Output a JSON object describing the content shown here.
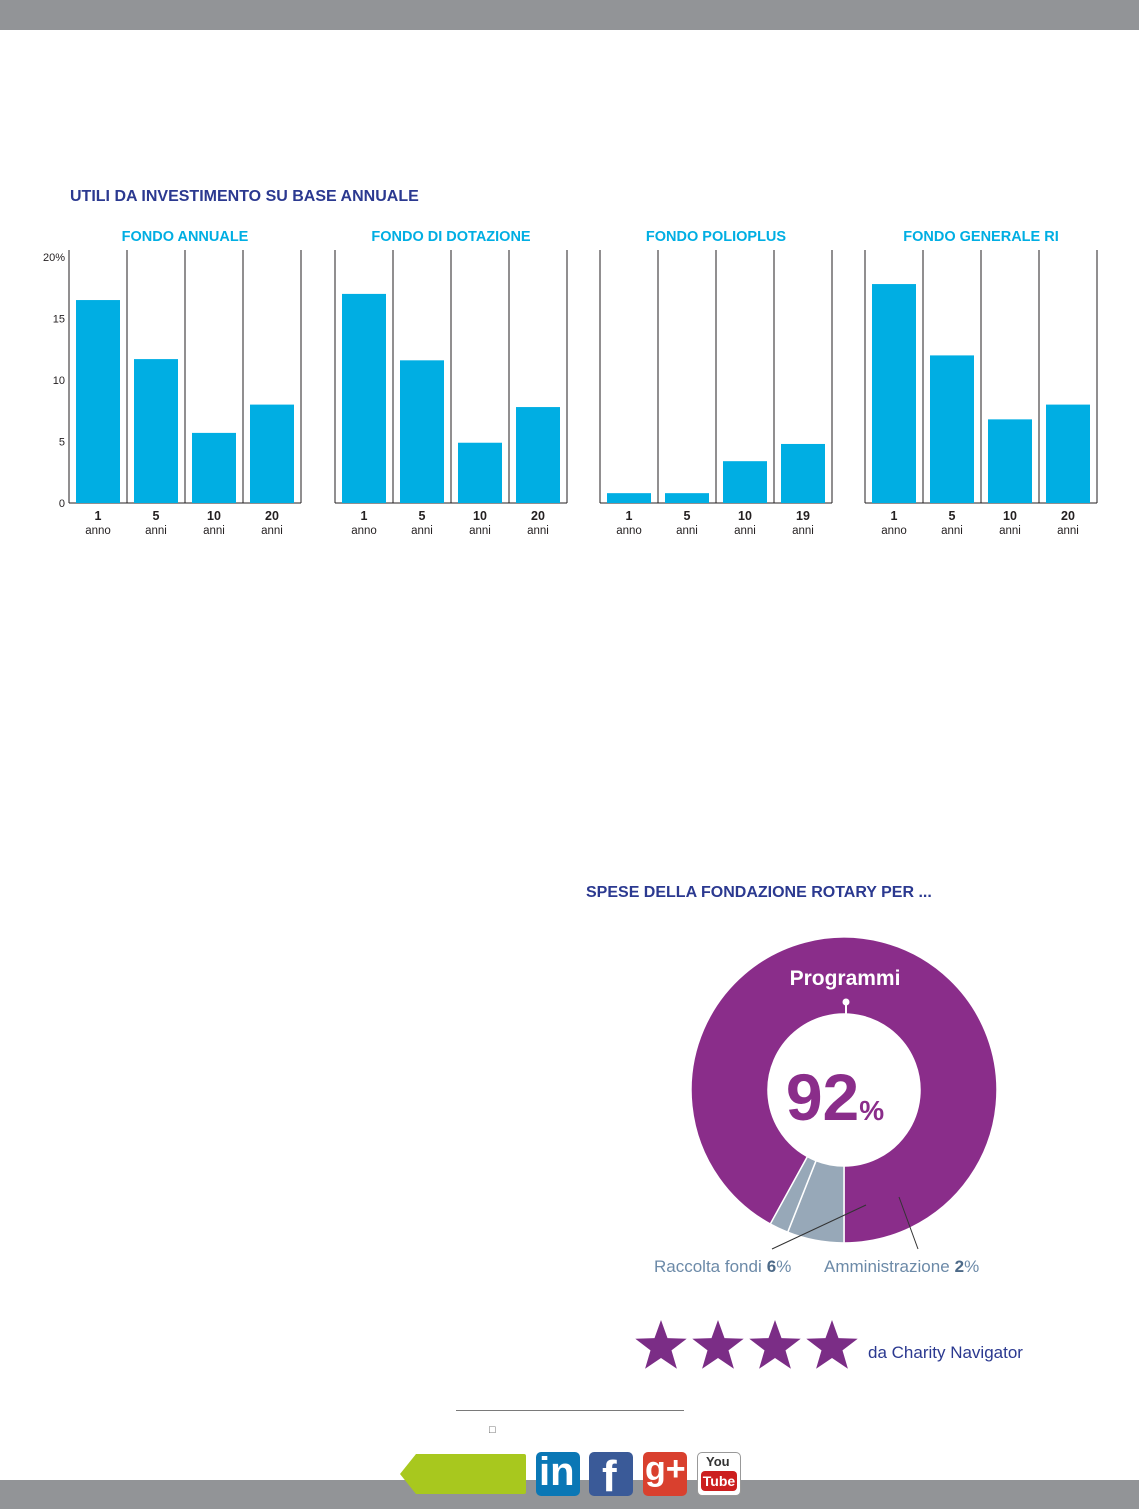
{
  "bar_chart_title": "UTILI DA INVESTIMENTO SU BASE ANNUALE",
  "donut_title": "SPESE DELLA FONDAZIONE ROTARY PER ...",
  "colors": {
    "bar": "#00aee3",
    "group_title": "#00aee3",
    "title": "#2b3990",
    "programmi": "#8a2d8a",
    "slice_gray": "#97a8b8",
    "bars_gray_top": "#929497",
    "stars": "#7b2d86",
    "label_gray": "#6c8aa8"
  },
  "chart_data": [
    {
      "type": "bar",
      "title": "UTILI DA INVESTIMENTO SU BASE ANNUALE",
      "ylim": [
        0,
        20
      ],
      "yticks": [
        "0",
        "5",
        "10",
        "15",
        "20%"
      ],
      "grid": false,
      "groups": [
        {
          "name": "FONDO ANNUALE",
          "categories": [
            "1",
            "5",
            "10",
            "20"
          ],
          "units": [
            "anno",
            "anni",
            "anni",
            "anni"
          ],
          "values": [
            16.5,
            11.7,
            5.7,
            8.0
          ]
        },
        {
          "name": "FONDO DI DOTAZIONE",
          "categories": [
            "1",
            "5",
            "10",
            "20"
          ],
          "units": [
            "anno",
            "anni",
            "anni",
            "anni"
          ],
          "values": [
            17.0,
            11.6,
            4.9,
            7.8
          ]
        },
        {
          "name": "FONDO POLIOPLUS",
          "categories": [
            "1",
            "5",
            "10",
            "19"
          ],
          "units": [
            "anno",
            "anni",
            "anni",
            "anni"
          ],
          "values": [
            0.8,
            0.8,
            3.4,
            4.8
          ]
        },
        {
          "name": "FONDO GENERALE RI",
          "categories": [
            "1",
            "5",
            "10",
            "20"
          ],
          "units": [
            "anno",
            "anni",
            "anni",
            "anni"
          ],
          "values": [
            17.8,
            12.0,
            6.8,
            8.0
          ]
        }
      ]
    },
    {
      "type": "pie",
      "title": "SPESE DELLA FONDAZIONE ROTARY PER ...",
      "slices": [
        {
          "name": "Programmi",
          "value": 92
        },
        {
          "name": "Raccolta fondi",
          "value": 6
        },
        {
          "name": "Amministrazione",
          "value": 2
        }
      ],
      "center_value": "92",
      "center_unit": "%",
      "label_programmi": "Programmi",
      "label_raccolta": "Raccolta fondi",
      "value_raccolta": "6",
      "label_amministrazione": "Amministrazione",
      "value_amministrazione": "2",
      "percent_sign": "%"
    }
  ],
  "rating": {
    "stars": 4,
    "text": "da Charity Navigator"
  },
  "footer": {
    "marker": "□"
  },
  "social_icons": [
    "tag-shape-icon",
    "linkedin-icon",
    "facebook-icon",
    "google-plus-icon",
    "youtube-icon"
  ],
  "social_text": {
    "linkedin": "in",
    "facebook": "f",
    "google_plus": "g+",
    "youtube_top": "You",
    "youtube_bottom": "Tube"
  }
}
